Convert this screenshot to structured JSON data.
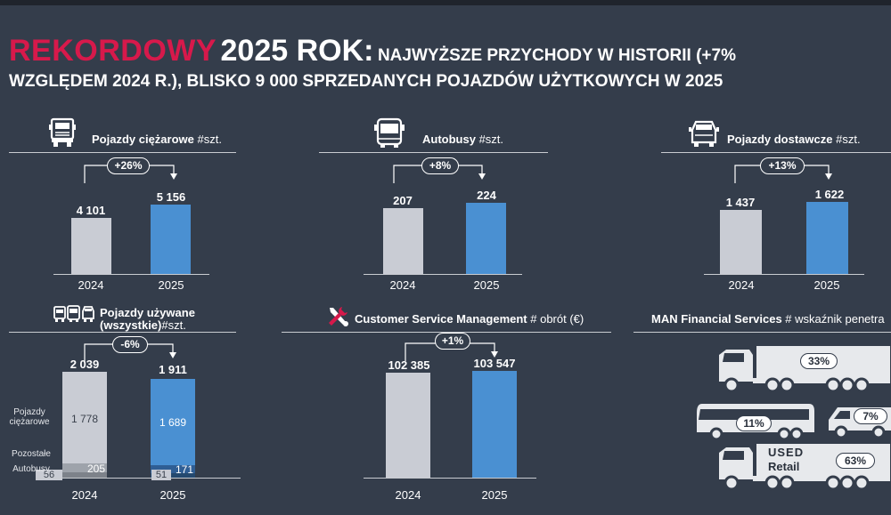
{
  "title": {
    "highlight": "REKORDOWY",
    "year": "2025 ROK:",
    "line1_rest": "NAJWYŻSZE PRZYCHODY W HISTORII (+7%",
    "line2": "WZGLĘDEM 2024 R.), BLISKO 9 000 SPRZEDANYCH POJAZDÓW UŻYTKOWYCH W 2025"
  },
  "colors": {
    "accent_red": "#d7194b",
    "bar_2024": "#c9ccd4",
    "bar_2025": "#4a90d2",
    "background": "#343d4b"
  },
  "panels": {
    "trucks": {
      "icon": "truck-icon",
      "label": "Pojazdy ciężarowe",
      "unit": "#szt.",
      "change": "+26%",
      "v2024": "4 101",
      "v2025": "5 156",
      "y2024": "2024",
      "y2025": "2025"
    },
    "buses": {
      "icon": "bus-icon",
      "label": "Autobusy",
      "unit": "#szt.",
      "change": "+8%",
      "v2024": "207",
      "v2025": "224",
      "y2024": "2024",
      "y2025": "2025"
    },
    "vans": {
      "icon": "van-icon",
      "label": "Pojazdy dostawcze",
      "unit": "#szt.",
      "change": "+13%",
      "v2024": "1 437",
      "v2025": "1 622",
      "y2024": "2024",
      "y2025": "2025"
    },
    "used": {
      "icon": "used-vehicles-icon",
      "label_line1": "Pojazdy używane",
      "label_line2": "(wszystkie)",
      "unit": "#szt.",
      "change": "-6%",
      "v2024": "2 039",
      "v2025": "1 911",
      "trucks_2024": "1 778",
      "trucks_2025": "1 689",
      "other_2024": "205",
      "other_2025": "171",
      "buses_2024": "56",
      "buses_2025": "51",
      "label_trucks": "Pojazdy\nciężarowe",
      "label_other": "Pozostałe",
      "label_buses": "Autobusy",
      "y2024": "2024",
      "y2025": "2025"
    },
    "csm": {
      "icon": "wrench-screwdriver-icon",
      "label": "Customer Service Management",
      "unit": "# obrót (€)",
      "change": "+1%",
      "v2024": "102 385",
      "v2025": "103 547",
      "y2024": "2024",
      "y2025": "2025"
    },
    "financial": {
      "label": "MAN Financial Services",
      "unit": "# wskaźnik penetra",
      "truck_share": "33%",
      "bus_share": "11%",
      "van_share": "7%",
      "used_label_1": "USED",
      "used_label_2": "Retail",
      "used_share": "63%"
    }
  }
}
